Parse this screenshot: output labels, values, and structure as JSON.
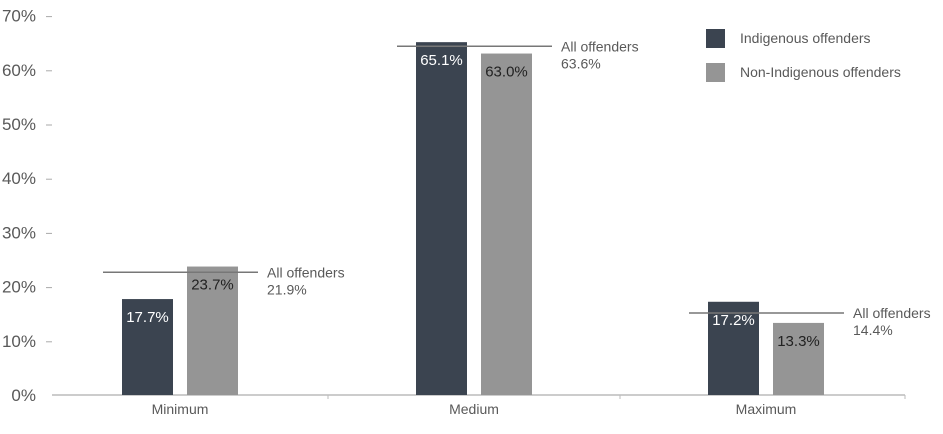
{
  "chart_data": {
    "type": "bar",
    "title": "",
    "xlabel": "",
    "ylabel": "",
    "categories": [
      "Minimum",
      "Medium",
      "Maximum"
    ],
    "series": [
      {
        "name": "Indigenous offenders",
        "values": [
          17.7,
          65.1,
          17.2
        ],
        "labels": [
          "17.7%",
          "65.1%",
          "17.2%"
        ],
        "color": "#3b4450"
      },
      {
        "name": "Non-Indigenous offenders",
        "values": [
          23.7,
          63.0,
          13.3
        ],
        "labels": [
          "23.7%",
          "63.0%",
          "13.3%"
        ],
        "color": "#959595"
      }
    ],
    "reference": {
      "name": "All offenders",
      "values": [
        21.9,
        63.6,
        14.4
      ],
      "labels": [
        "21.9%",
        "63.6%",
        "14.4%"
      ]
    },
    "ylim": [
      0,
      70
    ],
    "yticks": [
      0,
      10,
      20,
      30,
      40,
      50,
      60,
      70
    ],
    "ytick_labels": [
      "0%",
      "10%",
      "20%",
      "30%",
      "40%",
      "50%",
      "60%",
      "70%"
    ],
    "grid": false,
    "legend_position": "top-right"
  }
}
